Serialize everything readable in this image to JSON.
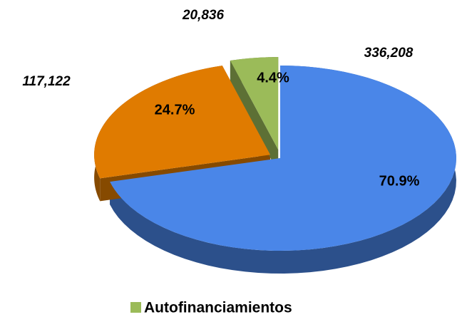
{
  "chart_data": {
    "type": "pie3d",
    "categories": [
      null,
      null,
      "Autofinanciamientos"
    ],
    "values": [
      336208,
      117122,
      20836
    ],
    "value_labels": [
      "336,208",
      "117,122",
      "20,836"
    ],
    "percent_values": [
      70.9,
      24.7,
      4.4
    ],
    "percent_labels": [
      "70.9%",
      "24.7%",
      "4.4%"
    ],
    "colors": [
      "#4a86e8",
      "#e07b00",
      "#9bbb59"
    ]
  }
}
